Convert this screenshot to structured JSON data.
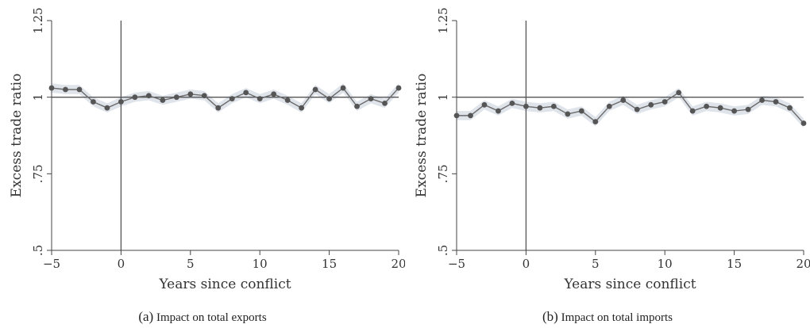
{
  "charts": [
    {
      "caption_letter": "(a)",
      "caption_text": "Impact on total exports",
      "chart_data": {
        "type": "line",
        "xlabel": "Years since conflict",
        "ylabel": "Excess trade ratio",
        "xlim": [
          -5,
          20
        ],
        "ylim": [
          0.5,
          1.25
        ],
        "xticks": [
          -5,
          0,
          5,
          10,
          15,
          20
        ],
        "xtick_labels": [
          "−5",
          "0",
          "5",
          "10",
          "15",
          "20"
        ],
        "yticks": [
          0.5,
          0.75,
          1,
          1.25
        ],
        "ytick_labels": [
          ".5",
          ".75",
          "1",
          "1.25"
        ],
        "reference_hline": 1,
        "reference_vline": 0,
        "confidence_band": true,
        "x": [
          -5,
          -4,
          -3,
          -2,
          -1,
          0,
          1,
          2,
          3,
          4,
          5,
          6,
          7,
          8,
          9,
          10,
          11,
          12,
          13,
          14,
          15,
          16,
          17,
          18,
          19,
          20
        ],
        "y": [
          1.03,
          1.025,
          1.025,
          0.985,
          0.965,
          0.985,
          1.0,
          1.005,
          0.99,
          1.0,
          1.01,
          1.005,
          0.965,
          0.995,
          1.015,
          0.995,
          1.01,
          0.99,
          0.965,
          1.025,
          0.995,
          1.03,
          0.97,
          0.995,
          0.98,
          1.03
        ],
        "band_halfwidth": 0.015
      }
    },
    {
      "caption_letter": "(b)",
      "caption_text": "Impact on total imports",
      "chart_data": {
        "type": "line",
        "xlabel": "Years since conflict",
        "ylabel": "Excess trade ratio",
        "xlim": [
          -5,
          20
        ],
        "ylim": [
          0.5,
          1.25
        ],
        "xticks": [
          -5,
          0,
          5,
          10,
          15,
          20
        ],
        "xtick_labels": [
          "−5",
          "0",
          "5",
          "10",
          "15",
          "20"
        ],
        "yticks": [
          0.5,
          0.75,
          1,
          1.25
        ],
        "ytick_labels": [
          ".5",
          ".75",
          "1",
          "1.25"
        ],
        "reference_hline": 1,
        "reference_vline": 0,
        "confidence_band": true,
        "x": [
          -5,
          -4,
          -3,
          -2,
          -1,
          0,
          1,
          2,
          3,
          4,
          5,
          6,
          7,
          8,
          9,
          10,
          11,
          12,
          13,
          14,
          15,
          16,
          17,
          18,
          19,
          20
        ],
        "y": [
          0.94,
          0.94,
          0.975,
          0.955,
          0.98,
          0.97,
          0.965,
          0.97,
          0.945,
          0.955,
          0.92,
          0.97,
          0.99,
          0.96,
          0.975,
          0.985,
          1.015,
          0.955,
          0.97,
          0.965,
          0.955,
          0.96,
          0.99,
          0.985,
          0.965,
          0.915
        ],
        "band_halfwidth": 0.015
      }
    }
  ],
  "colors": {
    "line": "#6a6a6a",
    "marker": "#555555",
    "band": "#dfe3ea",
    "axis": "#444444",
    "reference": "#555555"
  }
}
